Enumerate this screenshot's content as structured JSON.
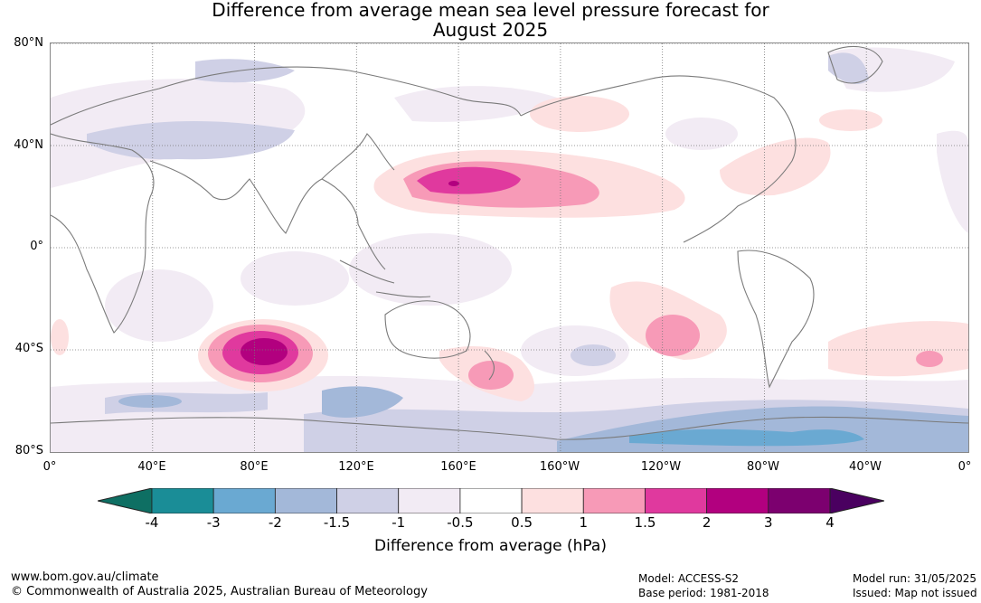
{
  "title_line1": "Difference from average mean sea level pressure forecast for",
  "title_line2": "August 2025",
  "lat_labels": [
    "80°N",
    "40°N",
    "0°",
    "40°S",
    "80°S"
  ],
  "lon_labels": [
    "0°",
    "40°E",
    "80°E",
    "120°E",
    "160°E",
    "160°W",
    "120°W",
    "80°W",
    "40°W",
    "0°"
  ],
  "colorbar": {
    "tick_labels": [
      "-4",
      "-3",
      "-2",
      "-1.5",
      "-1",
      "-0.5",
      "0.5",
      "1",
      "1.5",
      "2",
      "3",
      "4"
    ],
    "colors": [
      "#0e6f63",
      "#1a8d97",
      "#6aa9d2",
      "#a3b8d9",
      "#cfd0e6",
      "#f2ebf4",
      "#ffffff",
      "#fde0e0",
      "#f79ab7",
      "#e0399e",
      "#b2007f",
      "#7c006f",
      "#4a0060"
    ],
    "title": "Difference from average (hPa)"
  },
  "footer": {
    "website": "www.bom.gov.au/climate",
    "copyright": "© Commonwealth of Australia 2025, Australian Bureau of Meteorology",
    "model": "Model: ACCESS-S2",
    "base_period": "Base period: 1981-2018",
    "model_run": "Model run: 31/05/2025",
    "issued": "Issued: Map not issued"
  }
}
